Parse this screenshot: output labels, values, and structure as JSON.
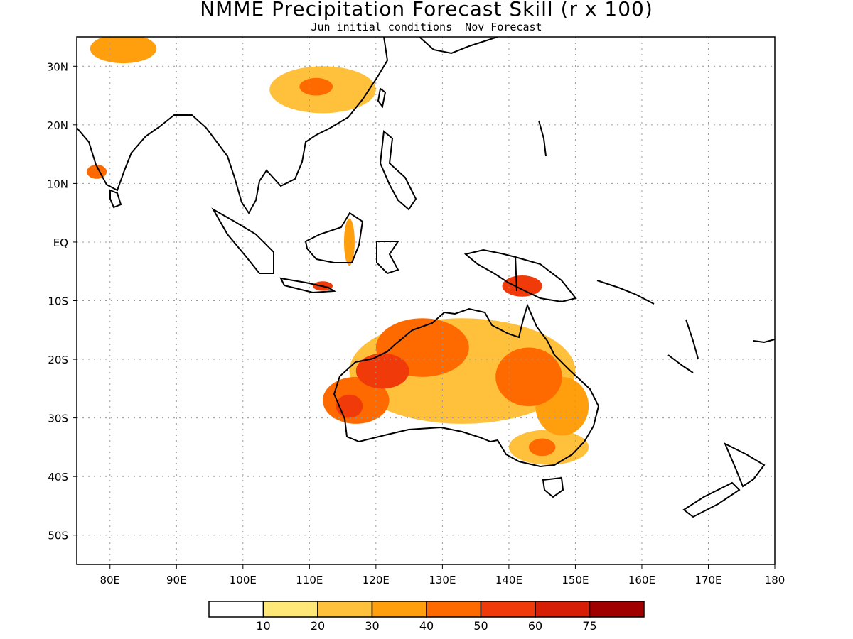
{
  "title": "NMME Precipitation Forecast Skill (r x 100)",
  "subtitle": "Jun initial conditions  Nov Forecast",
  "map": {
    "extent": {
      "lon_min": 75,
      "lon_max": 180,
      "lat_min": -55,
      "lat_max": 35
    },
    "lon_ticks": [
      {
        "value": 80,
        "label": "80E"
      },
      {
        "value": 90,
        "label": "90E"
      },
      {
        "value": 100,
        "label": "100E"
      },
      {
        "value": 110,
        "label": "110E"
      },
      {
        "value": 120,
        "label": "120E"
      },
      {
        "value": 130,
        "label": "130E"
      },
      {
        "value": 140,
        "label": "140E"
      },
      {
        "value": 150,
        "label": "150E"
      },
      {
        "value": 160,
        "label": "160E"
      },
      {
        "value": 170,
        "label": "170E"
      },
      {
        "value": 180,
        "label": "180"
      }
    ],
    "lat_ticks": [
      {
        "value": 30,
        "label": "30N"
      },
      {
        "value": 20,
        "label": "20N"
      },
      {
        "value": 10,
        "label": "10N"
      },
      {
        "value": 0,
        "label": "EQ"
      },
      {
        "value": -10,
        "label": "10S"
      },
      {
        "value": -20,
        "label": "20S"
      },
      {
        "value": -30,
        "label": "30S"
      },
      {
        "value": -40,
        "label": "40S"
      },
      {
        "value": -50,
        "label": "50S"
      }
    ],
    "grid": true
  },
  "colorbar": {
    "colors": [
      "#ffffff",
      "#ffe877",
      "#ffc03b",
      "#ff9f0e",
      "#ff6a00",
      "#f03a0a",
      "#d61e06",
      "#a10000"
    ],
    "labels": [
      "10",
      "20",
      "30",
      "40",
      "50",
      "60",
      "75"
    ]
  },
  "skill_regions": [
    {
      "lon": 133,
      "lat": -22,
      "rx": 17,
      "ry": 9,
      "level": 2
    },
    {
      "lon": 127,
      "lat": -18,
      "rx": 7,
      "ry": 5,
      "level": 4
    },
    {
      "lon": 121,
      "lat": -22,
      "rx": 4,
      "ry": 3,
      "level": 5
    },
    {
      "lon": 117,
      "lat": -27,
      "rx": 5,
      "ry": 4,
      "level": 4
    },
    {
      "lon": 116,
      "lat": -28,
      "rx": 2,
      "ry": 2,
      "level": 5
    },
    {
      "lon": 143,
      "lat": -23,
      "rx": 5,
      "ry": 5,
      "level": 4
    },
    {
      "lon": 148,
      "lat": -28,
      "rx": 4,
      "ry": 5,
      "level": 3
    },
    {
      "lon": 146,
      "lat": -35,
      "rx": 6,
      "ry": 3,
      "level": 2
    },
    {
      "lon": 145,
      "lat": -35,
      "rx": 2,
      "ry": 1.5,
      "level": 4
    },
    {
      "lon": 142,
      "lat": -7.5,
      "rx": 3,
      "ry": 1.8,
      "level": 5
    },
    {
      "lon": 112,
      "lat": -7.5,
      "rx": 1.5,
      "ry": 0.8,
      "level": 5
    },
    {
      "lon": 116,
      "lat": 0,
      "rx": 0.8,
      "ry": 4,
      "level": 3
    },
    {
      "lon": 112,
      "lat": 26,
      "rx": 8,
      "ry": 4,
      "level": 2
    },
    {
      "lon": 111,
      "lat": 26.5,
      "rx": 2.5,
      "ry": 1.5,
      "level": 4
    },
    {
      "lon": 78,
      "lat": 12,
      "rx": 1.5,
      "ry": 1.2,
      "level": 4
    },
    {
      "lon": 82,
      "lat": 33,
      "rx": 5,
      "ry": 2.5,
      "level": 3
    }
  ]
}
